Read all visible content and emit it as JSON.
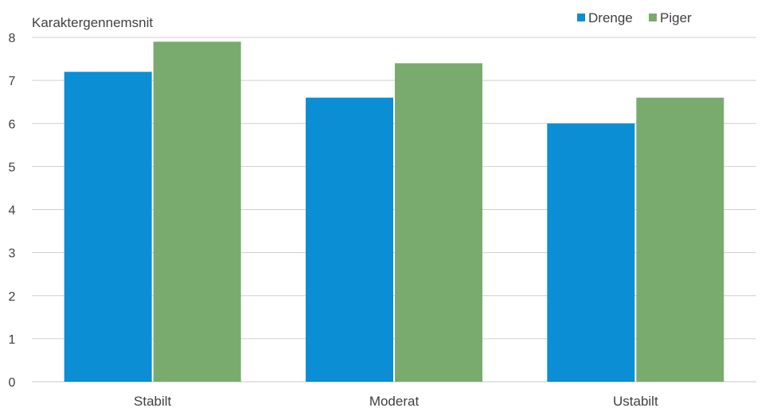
{
  "chart_data": {
    "type": "bar",
    "ylabel": "Karaktergennemsnit",
    "xlabel": "",
    "categories": [
      "Stabilt",
      "Moderat",
      "Ustabilt"
    ],
    "series": [
      {
        "name": "Drenge",
        "color": "#0b8ed4",
        "values": [
          7.2,
          6.6,
          6.0
        ]
      },
      {
        "name": "Piger",
        "color": "#7aab6e",
        "values": [
          7.9,
          7.4,
          6.6
        ]
      }
    ],
    "ylim": [
      0,
      8
    ],
    "yticks": [
      "0",
      "1",
      "2",
      "3",
      "4",
      "5",
      "6",
      "7",
      "8"
    ],
    "grid": true,
    "legend_position": "top-right"
  }
}
